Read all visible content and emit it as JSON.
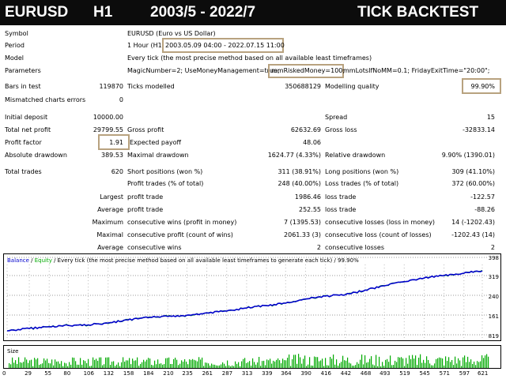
{
  "banner": {
    "symbol": "EURUSD",
    "timeframe": "H1",
    "range": "2003/5 - 2022/7",
    "mode": "TICK BACKTEST"
  },
  "settings": {
    "symbol_label": "Symbol",
    "symbol_value": "EURUSD (Euro vs US Dollar)",
    "period_label": "Period",
    "period_prefix": "1 Hour (H1)",
    "period_value": "2003.05.09 04:00 - 2022.07.15 11:00",
    "model_label": "Model",
    "model_value": "Every tick (the most precise method based on all available least timeframes)",
    "params_label": "Parameters",
    "params_a": "MagicNumber=2; UseMoneyManagement=true;",
    "params_b": "mmRiskedMoney=100;",
    "params_c": "mmLotsIfNoMM=0.1; FridayExitTime=\"20:00\";"
  },
  "stats": {
    "bars_label": "Bars in test",
    "bars_value": "119870",
    "ticks_label": "Ticks modelled",
    "ticks_value": "350688129",
    "quality_label": "Modelling quality",
    "quality_value": "99.90%",
    "mismatch_label": "Mismatched charts errors",
    "mismatch_value": "0",
    "deposit_label": "Initial deposit",
    "deposit_value": "10000.00",
    "spread_label": "Spread",
    "spread_value": "15",
    "netprofit_label": "Total net profit",
    "netprofit_value": "29799.55",
    "grossprofit_label": "Gross profit",
    "grossprofit_value": "62632.69",
    "grossloss_label": "Gross loss",
    "grossloss_value": "-32833.14",
    "pf_label": "Profit factor",
    "pf_value": "1.91",
    "expected_label": "Expected payoff",
    "expected_value": "48.06",
    "absdd_label": "Absolute drawdown",
    "absdd_value": "389.53",
    "maxdd_label": "Maximal drawdown",
    "maxdd_value": "1624.77 (4.33%)",
    "reldd_label": "Relative drawdown",
    "reldd_value": "9.90% (1390.01)",
    "trades_label": "Total trades",
    "trades_value": "620",
    "short_label": "Short positions (won %)",
    "short_value": "311 (38.91%)",
    "long_label": "Long positions (won %)",
    "long_value": "309 (41.10%)",
    "pt_label": "Profit trades (% of total)",
    "pt_value": "248 (40.00%)",
    "lt_label": "Loss trades (% of total)",
    "lt_value": "372 (60.00%)",
    "largest_label": "Largest",
    "largest_profit_label": "profit trade",
    "largest_profit_value": "1986.46",
    "largest_loss_label": "loss trade",
    "largest_loss_value": "-122.57",
    "average_label": "Average",
    "average_profit_label": "profit trade",
    "average_profit_value": "252.55",
    "average_loss_label": "loss trade",
    "average_loss_value": "-88.26",
    "maximum_label": "Maximum",
    "maxwins_label": "consecutive wins (profit in money)",
    "maxwins_value": "7 (1395.53)",
    "maxlosses_label": "consecutive losses (loss in money)",
    "maxlosses_value": "14 (-1202.43)",
    "maximal_label": "Maximal",
    "maxprofit_label": "consecutive profit (count of wins)",
    "maxprofit_value": "2061.33 (3)",
    "maxloss_label": "consecutive loss (count of losses)",
    "maxloss_value": "-1202.43 (14)",
    "average2_label": "Average",
    "avgwins_label": "consecutive wins",
    "avgwins_value": "2",
    "avglosses_label": "consecutive losses",
    "avglosses_value": "2"
  },
  "chart_data": [
    {
      "type": "line",
      "legend": {
        "balance": "Balance",
        "sep": " / ",
        "equity": "Equity",
        "desc": " / Every tick (the most precise method based on all available least timeframes to generate each tick) / 99.90%"
      },
      "y_tick_labels": [
        "398",
        "319",
        "240",
        "161",
        "819"
      ],
      "x": [
        0,
        29,
        55,
        80,
        106,
        132,
        158,
        184,
        210,
        235,
        261,
        287,
        313,
        339,
        364,
        390,
        416,
        442,
        468,
        493,
        519,
        545,
        571,
        597,
        621
      ],
      "y_relative": [
        0.0,
        0.04,
        0.07,
        0.09,
        0.1,
        0.13,
        0.18,
        0.22,
        0.24,
        0.26,
        0.3,
        0.33,
        0.38,
        0.42,
        0.46,
        0.53,
        0.58,
        0.6,
        0.68,
        0.75,
        0.82,
        0.88,
        0.92,
        0.96,
        1.0
      ],
      "colors": {
        "balance": "#0000cc",
        "equity": "#00aa00",
        "desc": "#000000"
      }
    },
    {
      "type": "bar",
      "title": "Size",
      "x_tick_labels": [
        "0",
        "29",
        "55",
        "80",
        "106",
        "132",
        "158",
        "184",
        "210",
        "235",
        "261",
        "287",
        "313",
        "339",
        "364",
        "390",
        "416",
        "442",
        "468",
        "493",
        "519",
        "545",
        "571",
        "597",
        "621"
      ],
      "color": "#00aa00"
    }
  ]
}
